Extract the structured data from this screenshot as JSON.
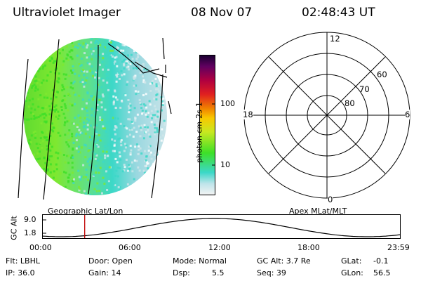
{
  "header": {
    "title": "Ultraviolet Imager",
    "date": "08 Nov 07",
    "time": "02:48:43 UT"
  },
  "colorbar": {
    "label": "photon cm-2s-1",
    "ticks": [
      "100",
      "10"
    ]
  },
  "polar": {
    "mlt_labels": {
      "noon": "12",
      "dawn": "6",
      "midnight": "0",
      "dusk": "18"
    },
    "lat_labels": [
      "80",
      "70",
      "60"
    ]
  },
  "orbit": {
    "left_title": "Geographic Lat/Lon",
    "right_title": "Apex MLat/MLT",
    "y_axis_label": "GC Alt",
    "y_ticks": [
      "9.0",
      "1.8"
    ],
    "x_ticks": [
      "00:00",
      "06:00",
      "12:00",
      "18:00",
      "23:59"
    ],
    "current_time_hours": 2.81
  },
  "footer": {
    "row1": {
      "filter": "Flt: LBHL",
      "door": "Door: Open",
      "mode": "Mode: Normal",
      "gc_alt": "GC Alt: 3.7 Re",
      "glat_label": "GLat:",
      "glat_value": "-0.1"
    },
    "row2": {
      "ip": "IP: 36.0",
      "gain": "Gain: 14",
      "dsp_label": "Dsp:",
      "dsp_value": "5.5",
      "seq": "Seq: 39",
      "glon_label": "GLon:",
      "glon_value": "56.5"
    }
  },
  "colors": {
    "bright_green": "#3de028",
    "green": "#7ee830",
    "cyan": "#3cd8c8",
    "light": "#d0e6ea",
    "marker_red": "#c00000"
  }
}
